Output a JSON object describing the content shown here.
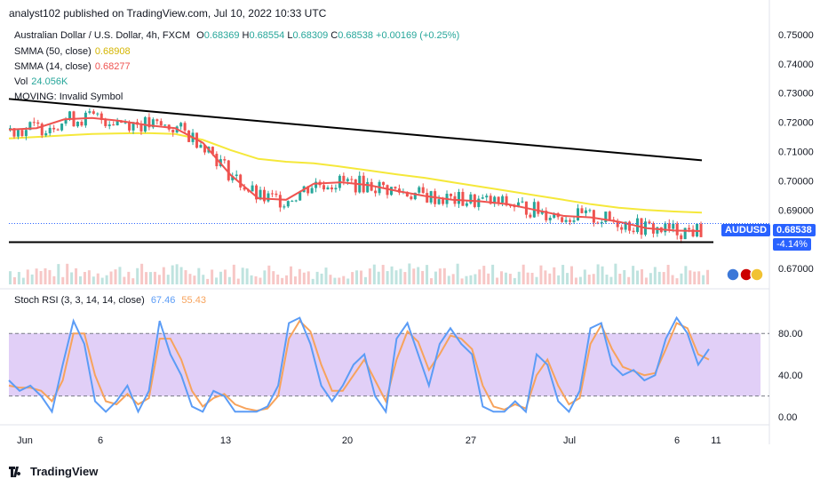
{
  "header": {
    "published": "analyst102 published on TradingView.com, Jul 10, 2022 10:33 UTC"
  },
  "legend": {
    "symbol_line": "Australian Dollar / U.S. Dollar, 4h, FXCM",
    "o_label": "O",
    "o": "0.68369",
    "h_label": "H",
    "h": "0.68554",
    "l_label": "L",
    "l": "0.68309",
    "c_label": "C",
    "c": "0.68538",
    "change": "+0.00169 (+0.25%)",
    "smma50_label": "SMMA (50, close)",
    "smma50": "0.68908",
    "smma14_label": "SMMA (14, close)",
    "smma14": "0.68277",
    "vol_label": "Vol",
    "vol": "24.056K",
    "moving": "MOVING: Invalid Symbol",
    "stoch_label": "Stoch RSI (3, 3, 14, 14, close)",
    "stoch_k": "67.46",
    "stoch_d": "55.43"
  },
  "price_tag": {
    "symbol": "AUDUSD",
    "price": "0.68538",
    "change": "-4.14%"
  },
  "footer": {
    "brand": "TradingView"
  },
  "colors": {
    "up": "#26a69a",
    "down": "#ef5350",
    "smma50": "#f5e83a",
    "smma14": "#ef5350",
    "k": "#5b9cf6",
    "d": "#f7a35c",
    "band": "#e1cff7",
    "tag": "#2962ff",
    "smma50_text": "#d4b500",
    "vol_text": "#26a69a"
  },
  "chart_data": [
    {
      "type": "candlestick",
      "y_ticks": [
        "0.75000",
        "0.74000",
        "0.73000",
        "0.72000",
        "0.71000",
        "0.70000",
        "0.69000",
        "0.67000"
      ],
      "y_range": [
        0.667,
        0.7515
      ],
      "x_ticks": [
        "Jun",
        "6",
        "13",
        "20",
        "27",
        "Jul",
        "6",
        "11"
      ],
      "series": [
        {
          "name": "SMMA (50, close)",
          "values": [
            0.7145,
            0.715,
            0.7155,
            0.716,
            0.7162,
            0.7163,
            0.716,
            0.714,
            0.7105,
            0.7075,
            0.7065,
            0.706,
            0.7048,
            0.7035,
            0.7022,
            0.701,
            0.6995,
            0.698,
            0.6965,
            0.695,
            0.6935,
            0.692,
            0.6908,
            0.69,
            0.6895,
            0.6891
          ]
        },
        {
          "name": "SMMA (14, close)",
          "values": [
            0.7175,
            0.718,
            0.721,
            0.7215,
            0.7205,
            0.719,
            0.718,
            0.713,
            0.702,
            0.694,
            0.6935,
            0.699,
            0.6995,
            0.6985,
            0.6965,
            0.6948,
            0.6935,
            0.693,
            0.692,
            0.69,
            0.688,
            0.6875,
            0.686,
            0.6838,
            0.683,
            0.6828
          ]
        }
      ],
      "trendlines": [
        {
          "from": {
            "x": "start",
            "y": 0.728
          },
          "to": {
            "x": "Jul 10",
            "y": 0.707
          }
        },
        {
          "from": {
            "x": "start",
            "y": 0.679
          },
          "to": {
            "x": "Jul 10",
            "y": 0.679
          }
        }
      ],
      "dotted_price_line": 0.68538
    },
    {
      "type": "line",
      "title": "Stoch RSI (3, 3, 14, 14, close)",
      "y_ticks": [
        "80.00",
        "40.00",
        "0.00"
      ],
      "y_range": [
        -5,
        110
      ],
      "band": [
        20,
        80
      ],
      "series": [
        {
          "name": "K",
          "values": [
            35,
            25,
            30,
            20,
            5,
            50,
            92,
            70,
            15,
            5,
            15,
            30,
            5,
            25,
            92,
            60,
            40,
            10,
            5,
            25,
            20,
            5,
            5,
            5,
            10,
            30,
            90,
            95,
            70,
            30,
            15,
            30,
            50,
            60,
            20,
            5,
            75,
            90,
            60,
            30,
            70,
            85,
            70,
            60,
            10,
            5,
            5,
            15,
            5,
            60,
            50,
            15,
            5,
            25,
            85,
            90,
            50,
            40,
            45,
            35,
            40,
            75,
            95,
            80,
            50,
            65
          ]
        },
        {
          "name": "D",
          "values": [
            30,
            28,
            28,
            25,
            15,
            35,
            80,
            80,
            40,
            15,
            12,
            22,
            12,
            18,
            75,
            75,
            55,
            25,
            10,
            18,
            22,
            12,
            8,
            6,
            8,
            20,
            75,
            92,
            82,
            50,
            25,
            25,
            40,
            55,
            35,
            15,
            55,
            82,
            72,
            45,
            60,
            78,
            75,
            65,
            30,
            10,
            7,
            12,
            8,
            40,
            55,
            30,
            12,
            18,
            70,
            88,
            65,
            48,
            44,
            40,
            42,
            65,
            90,
            85,
            60,
            55
          ]
        }
      ]
    }
  ]
}
